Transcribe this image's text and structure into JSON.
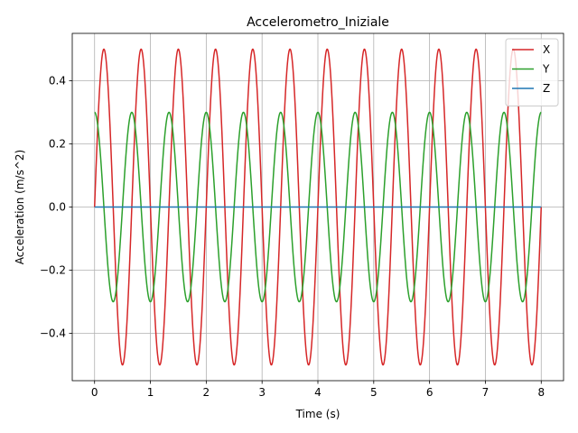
{
  "chart_data": {
    "type": "line",
    "title": "Accelerometro_Iniziale",
    "xlabel": "Time (s)",
    "ylabel": "Acceleration (m/s^2)",
    "xlim": [
      -0.4,
      8.4
    ],
    "ylim": [
      -0.55,
      0.55
    ],
    "xticks": [
      0,
      1,
      2,
      3,
      4,
      5,
      6,
      7,
      8
    ],
    "xtick_labels": [
      "0",
      "1",
      "2",
      "3",
      "4",
      "5",
      "6",
      "7",
      "8"
    ],
    "yticks": [
      -0.4,
      -0.2,
      0.0,
      0.2,
      0.4
    ],
    "ytick_labels": [
      "−0.4",
      "−0.2",
      "0.0",
      "0.2",
      "0.4"
    ],
    "grid": true,
    "legend_position": "top-right",
    "series": [
      {
        "name": "X",
        "color": "#d62728",
        "function": "0.5*sin(2*pi*1.5*t)",
        "amplitude": 0.5,
        "frequency_hz": 1.5,
        "phase": "sin",
        "x_range": [
          0,
          8
        ]
      },
      {
        "name": "Y",
        "color": "#2ca02c",
        "function": "0.3*cos(2*pi*1.5*t)",
        "amplitude": 0.3,
        "frequency_hz": 1.5,
        "phase": "cos",
        "x_range": [
          0,
          8
        ]
      },
      {
        "name": "Z",
        "color": "#1f77b4",
        "function": "0",
        "amplitude": 0.0,
        "frequency_hz": 0,
        "phase": "const",
        "x_range": [
          0,
          8
        ]
      }
    ]
  }
}
